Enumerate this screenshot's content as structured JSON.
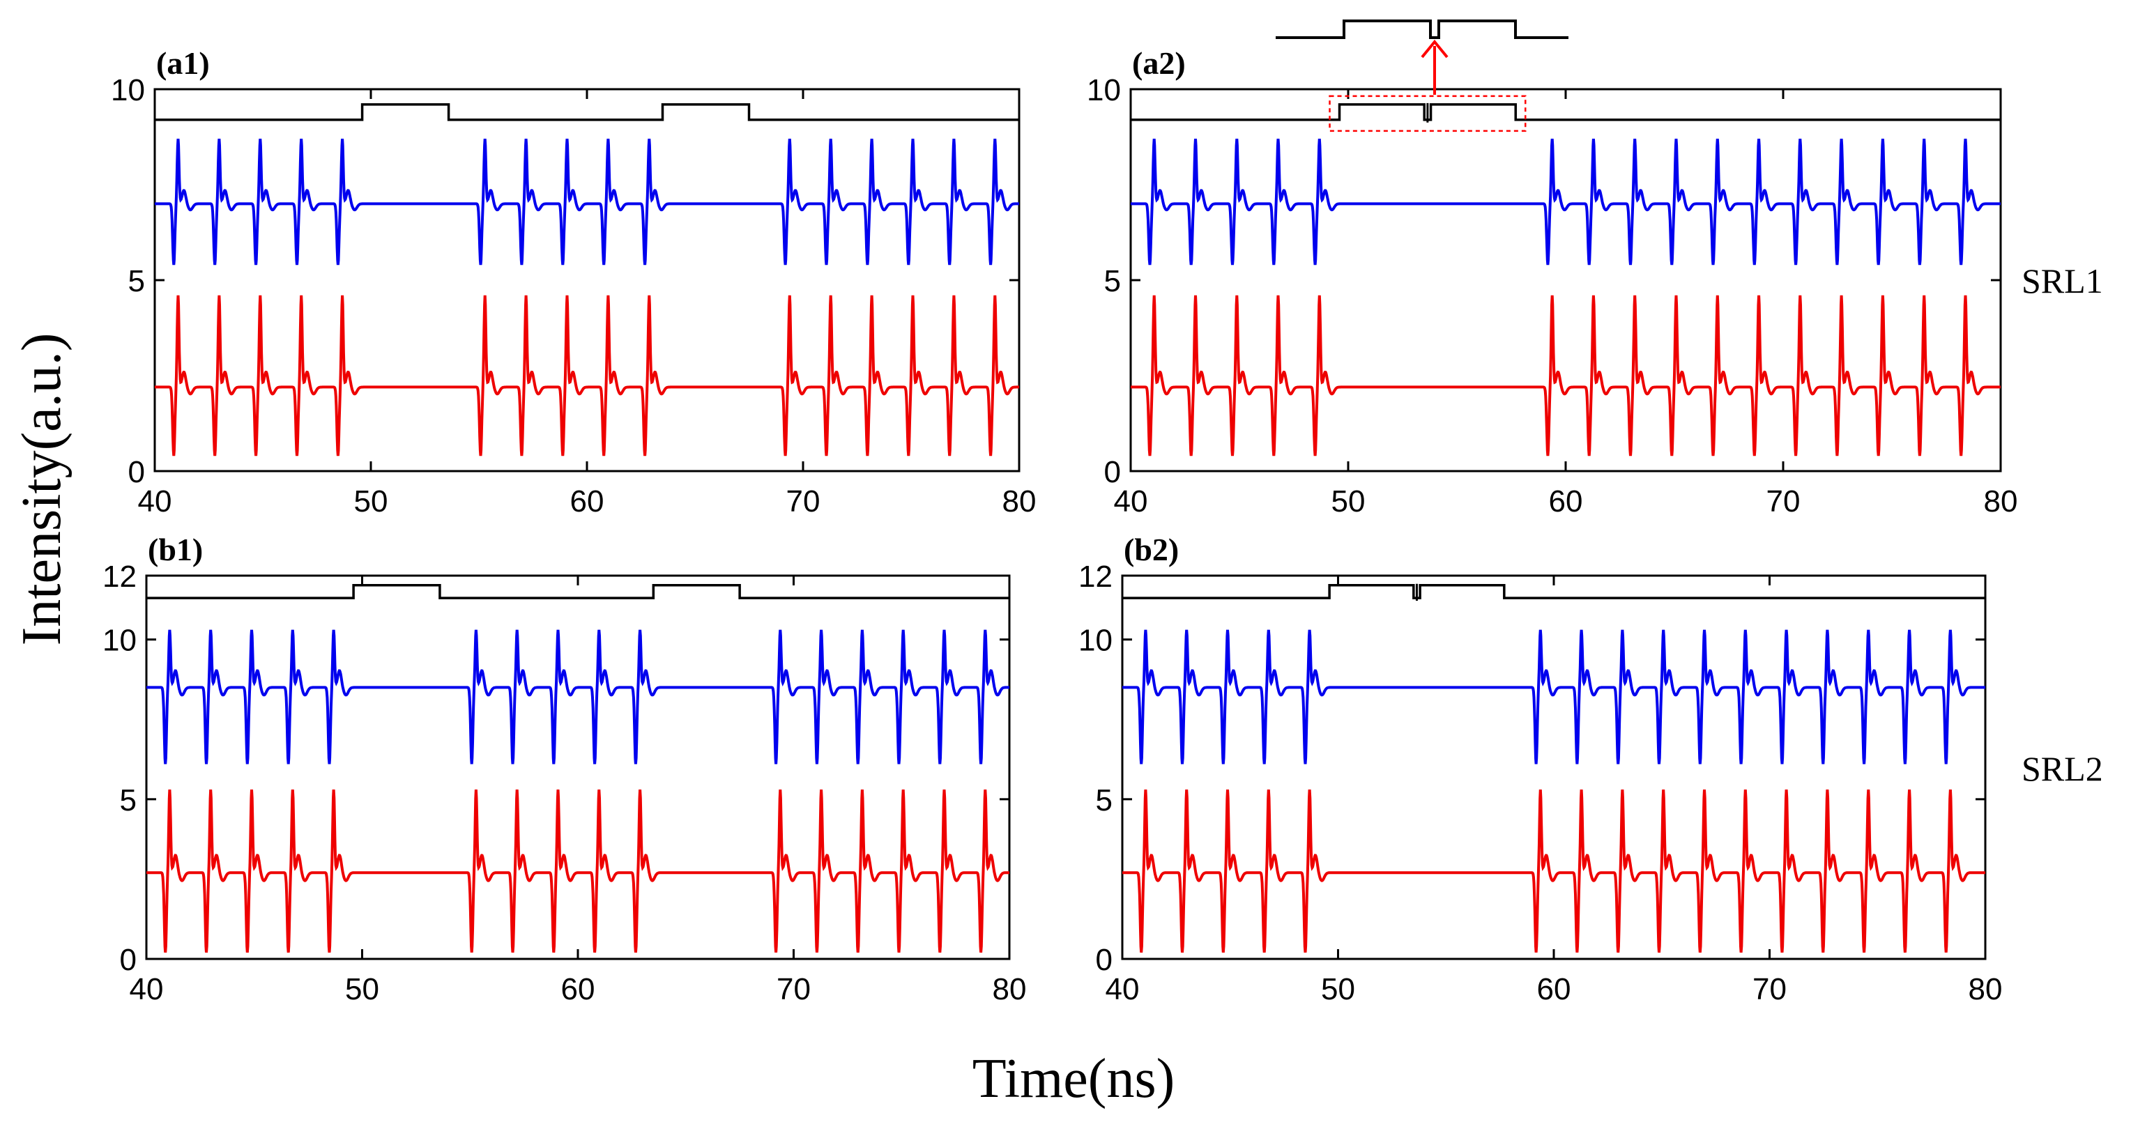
{
  "figure": {
    "ylabel": "Intensity(a.u.)",
    "xlabel": "Time(ns)",
    "row_labels": [
      "SRL1",
      "SRL2"
    ],
    "colors": {
      "blue": "#0000ee",
      "red": "#ee0000",
      "input": "#000000",
      "highlight": "#ff0000"
    },
    "inset_arrow": true
  },
  "chart_data": [
    {
      "id": "a1",
      "type": "line",
      "title": "(a1)",
      "xlim": [
        40,
        80
      ],
      "ylim": [
        0,
        10
      ],
      "xticks": [
        40,
        50,
        60,
        70,
        80
      ],
      "yticks": [
        0,
        5,
        10
      ],
      "input_pulses": [
        [
          49.6,
          53.6
        ],
        [
          63.5,
          67.5
        ]
      ],
      "input_levels": {
        "low": 9.2,
        "high": 9.6
      },
      "series": [
        {
          "name": "blue",
          "baseline": 7.0,
          "peak": 8.7,
          "trough": 5.4,
          "spikes": [
            41.1,
            43.0,
            44.9,
            46.8,
            48.7,
            55.3,
            57.2,
            59.1,
            61.0,
            62.9,
            69.4,
            71.3,
            73.2,
            75.1,
            77.0,
            78.9
          ]
        },
        {
          "name": "red",
          "baseline": 2.2,
          "peak": 4.6,
          "trough": 0.4,
          "spikes": [
            41.1,
            43.0,
            44.9,
            46.8,
            48.7,
            55.3,
            57.2,
            59.1,
            61.0,
            62.9,
            69.4,
            71.3,
            73.2,
            75.1,
            77.0,
            78.9
          ]
        }
      ]
    },
    {
      "id": "a2",
      "type": "line",
      "title": "(a2)",
      "xlim": [
        40,
        80
      ],
      "ylim": [
        0,
        10
      ],
      "xticks": [
        40,
        50,
        60,
        70,
        80
      ],
      "yticks": [
        0,
        5,
        10
      ],
      "input_pulses": [
        [
          49.6,
          53.5
        ],
        [
          53.8,
          57.7
        ]
      ],
      "input_levels": {
        "low": 9.2,
        "high": 9.6
      },
      "series": [
        {
          "name": "blue",
          "baseline": 7.0,
          "peak": 8.7,
          "trough": 5.4,
          "spikes": [
            41.1,
            43.0,
            44.9,
            46.8,
            48.7,
            59.4,
            61.3,
            63.2,
            65.1,
            67.0,
            68.9,
            70.8,
            72.7,
            74.6,
            76.5,
            78.4
          ]
        },
        {
          "name": "red",
          "baseline": 2.2,
          "peak": 4.6,
          "trough": 0.4,
          "spikes": [
            41.1,
            43.0,
            44.9,
            46.8,
            48.7,
            59.4,
            61.3,
            63.2,
            65.1,
            67.0,
            68.9,
            70.8,
            72.7,
            74.6,
            76.5,
            78.4
          ]
        }
      ]
    },
    {
      "id": "b1",
      "type": "line",
      "title": "(b1)",
      "xlim": [
        40,
        80
      ],
      "ylim": [
        0,
        12
      ],
      "xticks": [
        40,
        50,
        60,
        70,
        80
      ],
      "yticks": [
        0,
        5,
        10,
        12
      ],
      "input_pulses": [
        [
          49.6,
          53.6
        ],
        [
          63.5,
          67.5
        ]
      ],
      "input_levels": {
        "low": 11.3,
        "high": 11.7
      },
      "series": [
        {
          "name": "blue",
          "baseline": 8.5,
          "peak": 10.3,
          "trough": 6.1,
          "spikes": [
            41.1,
            43.0,
            44.9,
            46.8,
            48.7,
            55.3,
            57.2,
            59.1,
            61.0,
            62.9,
            69.4,
            71.3,
            73.2,
            75.1,
            77.0,
            78.9
          ]
        },
        {
          "name": "red",
          "baseline": 2.7,
          "peak": 5.3,
          "trough": 0.2,
          "spikes": [
            41.1,
            43.0,
            44.9,
            46.8,
            48.7,
            55.3,
            57.2,
            59.1,
            61.0,
            62.9,
            69.4,
            71.3,
            73.2,
            75.1,
            77.0,
            78.9
          ]
        }
      ]
    },
    {
      "id": "b2",
      "type": "line",
      "title": "(b2)",
      "xlim": [
        40,
        80
      ],
      "ylim": [
        0,
        12
      ],
      "xticks": [
        40,
        50,
        60,
        70,
        80
      ],
      "yticks": [
        0,
        5,
        10,
        12
      ],
      "input_pulses": [
        [
          49.6,
          53.5
        ],
        [
          53.8,
          57.7
        ]
      ],
      "input_levels": {
        "low": 11.3,
        "high": 11.7
      },
      "series": [
        {
          "name": "blue",
          "baseline": 8.5,
          "peak": 10.3,
          "trough": 6.1,
          "spikes": [
            41.1,
            43.0,
            44.9,
            46.8,
            48.7,
            59.4,
            61.3,
            63.2,
            65.1,
            67.0,
            68.9,
            70.8,
            72.7,
            74.6,
            76.5,
            78.4
          ]
        },
        {
          "name": "red",
          "baseline": 2.7,
          "peak": 5.3,
          "trough": 0.2,
          "spikes": [
            41.1,
            43.0,
            44.9,
            46.8,
            48.7,
            59.4,
            61.3,
            63.2,
            65.1,
            67.0,
            68.9,
            70.8,
            72.7,
            74.6,
            76.5,
            78.4
          ]
        }
      ]
    }
  ]
}
